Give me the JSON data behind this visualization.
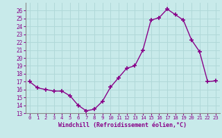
{
  "x": [
    0,
    1,
    2,
    3,
    4,
    5,
    6,
    7,
    8,
    9,
    10,
    11,
    12,
    13,
    14,
    15,
    16,
    17,
    18,
    19,
    20,
    21,
    22,
    23
  ],
  "y": [
    17.0,
    16.2,
    16.0,
    15.8,
    15.8,
    15.2,
    14.0,
    13.3,
    13.5,
    14.5,
    16.3,
    17.5,
    18.7,
    19.0,
    21.0,
    24.8,
    25.1,
    26.2,
    25.5,
    24.8,
    22.3,
    20.8,
    17.0,
    17.1
  ],
  "line_color": "#880088",
  "marker": "+",
  "marker_size": 4,
  "bg_color": "#c8eaea",
  "grid_color": "#b0d8d8",
  "xlabel": "Windchill (Refroidissement éolien,°C)",
  "xlabel_color": "#880088",
  "tick_color": "#880088",
  "ylim": [
    13,
    27
  ],
  "xlim": [
    -0.5,
    23.5
  ],
  "yticks": [
    13,
    14,
    15,
    16,
    17,
    18,
    19,
    20,
    21,
    22,
    23,
    24,
    25,
    26
  ],
  "xticks": [
    0,
    1,
    2,
    3,
    4,
    5,
    6,
    7,
    8,
    9,
    10,
    11,
    12,
    13,
    14,
    15,
    16,
    17,
    18,
    19,
    20,
    21,
    22,
    23
  ]
}
